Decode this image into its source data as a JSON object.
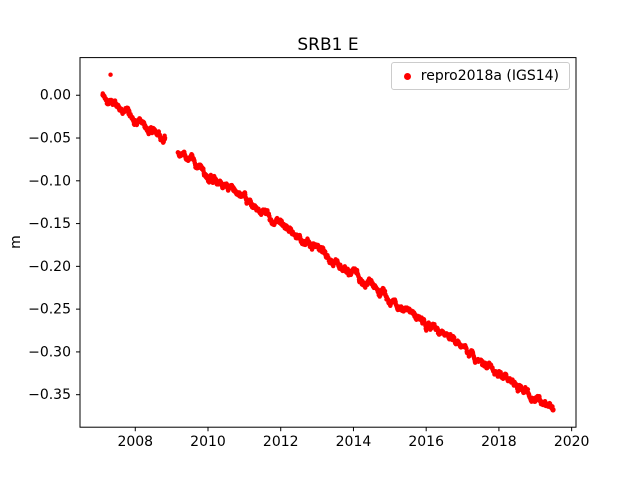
{
  "figure": {
    "background": "#ffffff"
  },
  "chart_data": {
    "type": "scatter",
    "title": "SRB1 E",
    "xlabel": "",
    "ylabel": "m",
    "xlim": [
      2006.48,
      2020.12
    ],
    "ylim": [
      -0.388,
      0.044
    ],
    "grid": false,
    "xticks": {
      "values": [
        2008,
        2010,
        2012,
        2014,
        2016,
        2018,
        2020
      ],
      "labels": [
        "2008",
        "2010",
        "2012",
        "2014",
        "2016",
        "2018",
        "2020"
      ]
    },
    "yticks": {
      "values": [
        0.0,
        -0.05,
        -0.1,
        -0.15,
        -0.2,
        -0.25,
        -0.3,
        -0.35
      ],
      "labels": [
        "0.00",
        "−0.05",
        "−0.10",
        "−0.15",
        "−0.20",
        "−0.25",
        "−0.30",
        "−0.35"
      ]
    },
    "legend": {
      "label": "repro2018a (IGS14)",
      "position": "upper right"
    },
    "marker": {
      "color": "#ff0000",
      "shape": "dot",
      "radius_px": 2.2
    },
    "series": [
      {
        "name": "repro2018a (IGS14)",
        "description": "Dense daily scatter, approximately linear decline with small gap 2008.8-2009.2",
        "slope_m_per_yr": -0.0297,
        "trend_segments": [
          {
            "x_start": 2007.1,
            "y_start": 0.0,
            "x_end": 2008.82,
            "y_end": -0.052,
            "n_points": 260
          },
          {
            "x_start": 2009.17,
            "y_start": -0.068,
            "x_end": 2019.5,
            "y_end": -0.368,
            "n_points": 1560
          }
        ],
        "outliers": [
          [
            2007.32,
            0.024
          ]
        ],
        "noise": {
          "walk": 0.004,
          "white": 0.003,
          "seed": 42
        }
      }
    ]
  }
}
